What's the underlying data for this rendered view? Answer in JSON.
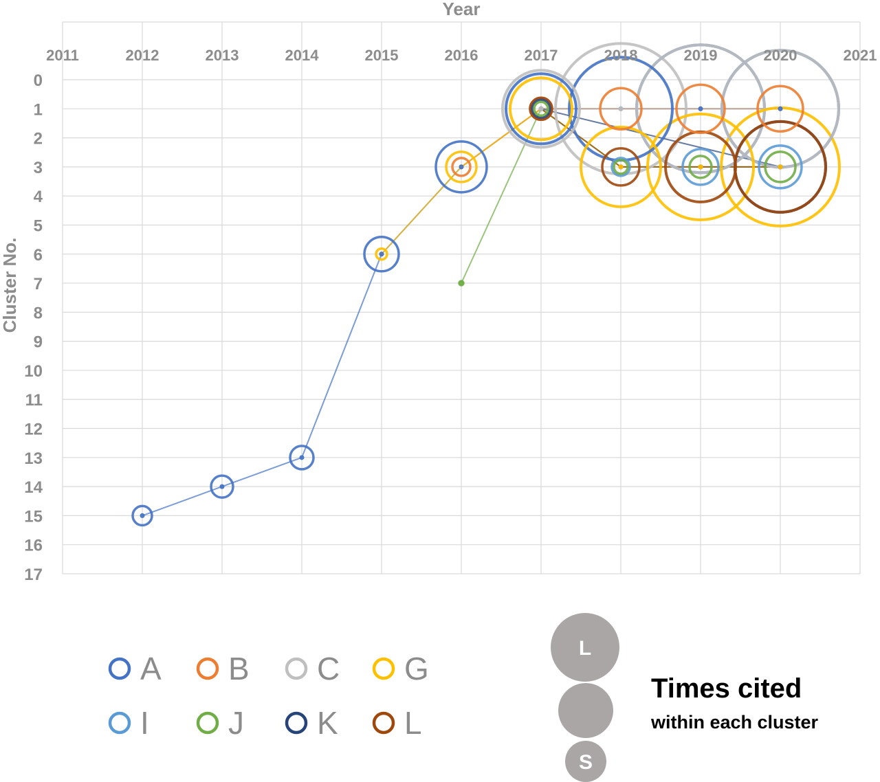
{
  "chart_data": {
    "type": "scatter",
    "xlabel": "Year",
    "ylabel": "Cluster No.",
    "xlim": [
      2011,
      2021
    ],
    "ylim": [
      0,
      17
    ],
    "y_inverted": true,
    "x_axis_position": "top",
    "grid": true,
    "x_ticks": [
      "2011",
      "2012",
      "2013",
      "2014",
      "2015",
      "2016",
      "2017",
      "2018",
      "2019",
      "2020",
      "2021"
    ],
    "y_ticks": [
      "0",
      "1",
      "2",
      "3",
      "4",
      "5",
      "6",
      "7",
      "8",
      "9",
      "10",
      "11",
      "12",
      "13",
      "14",
      "15",
      "16",
      "17"
    ],
    "series": [
      {
        "name": "A",
        "color": "#4472c4",
        "points": [
          {
            "x": 2012,
            "y": 15,
            "size": 14
          },
          {
            "x": 2013,
            "y": 14,
            "size": 16
          },
          {
            "x": 2014,
            "y": 13,
            "size": 17
          },
          {
            "x": 2015,
            "y": 6,
            "size": 25
          },
          {
            "x": 2016,
            "y": 3,
            "size": 37
          },
          {
            "x": 2017,
            "y": 1,
            "size": 51
          },
          {
            "x": 2018,
            "y": 1,
            "size": 75
          },
          {
            "x": 2019,
            "y": 1,
            "size": 93
          },
          {
            "x": 2020,
            "y": 1,
            "size": 85
          }
        ]
      },
      {
        "name": "B",
        "color": "#ed7d31",
        "points": [
          {
            "x": 2016,
            "y": 3,
            "size": 13
          },
          {
            "x": 2017,
            "y": 1,
            "size": 16
          },
          {
            "x": 2018,
            "y": 1,
            "size": 30
          },
          {
            "x": 2019,
            "y": 1,
            "size": 35
          },
          {
            "x": 2020,
            "y": 1,
            "size": 33
          }
        ]
      },
      {
        "name": "C",
        "color": "#bfbfbf",
        "points": [
          {
            "x": 2017,
            "y": 1,
            "size": 56
          },
          {
            "x": 2018,
            "y": 1,
            "size": 95
          },
          {
            "x": 2019,
            "y": 1,
            "size": 93
          },
          {
            "x": 2020,
            "y": 1,
            "size": 85
          }
        ]
      },
      {
        "name": "G",
        "color": "#ffc000",
        "points": [
          {
            "x": 2015,
            "y": 6,
            "size": 8
          },
          {
            "x": 2016,
            "y": 3,
            "size": 22
          },
          {
            "x": 2017,
            "y": 1,
            "size": 45
          },
          {
            "x": 2018,
            "y": 3,
            "size": 58
          },
          {
            "x": 2019,
            "y": 3,
            "size": 77
          },
          {
            "x": 2020,
            "y": 3,
            "size": 86
          }
        ]
      },
      {
        "name": "I",
        "color": "#5b9bd5",
        "points": [
          {
            "x": 2018,
            "y": 3,
            "size": 13
          },
          {
            "x": 2019,
            "y": 3,
            "size": 26
          },
          {
            "x": 2020,
            "y": 3,
            "size": 31
          }
        ]
      },
      {
        "name": "J",
        "color": "#70ad47",
        "points": [
          {
            "x": 2016,
            "y": 7,
            "size": 3
          },
          {
            "x": 2017,
            "y": 1,
            "size": 10
          },
          {
            "x": 2018,
            "y": 3,
            "size": 10
          },
          {
            "x": 2019,
            "y": 3,
            "size": 16
          },
          {
            "x": 2020,
            "y": 3,
            "size": 22
          }
        ]
      },
      {
        "name": "K",
        "color": "#264478",
        "points": [
          {
            "x": 2017,
            "y": 1,
            "size": 13
          },
          {
            "x": 2020,
            "y": 3,
            "size": 66
          }
        ]
      },
      {
        "name": "L",
        "color": "#9e480e",
        "points": [
          {
            "x": 2017,
            "y": 1,
            "size": 16
          },
          {
            "x": 2018,
            "y": 3,
            "size": 27
          },
          {
            "x": 2019,
            "y": 3,
            "size": 51
          },
          {
            "x": 2020,
            "y": 3,
            "size": 66
          }
        ]
      }
    ],
    "legend": {
      "items": [
        "A",
        "B",
        "C",
        "G",
        "I",
        "J",
        "K",
        "L"
      ],
      "placement": "bottom-left"
    },
    "size_legend": {
      "title": "Times cited",
      "subtitle": "within each cluster",
      "large_label": "L",
      "small_label": "S"
    }
  }
}
